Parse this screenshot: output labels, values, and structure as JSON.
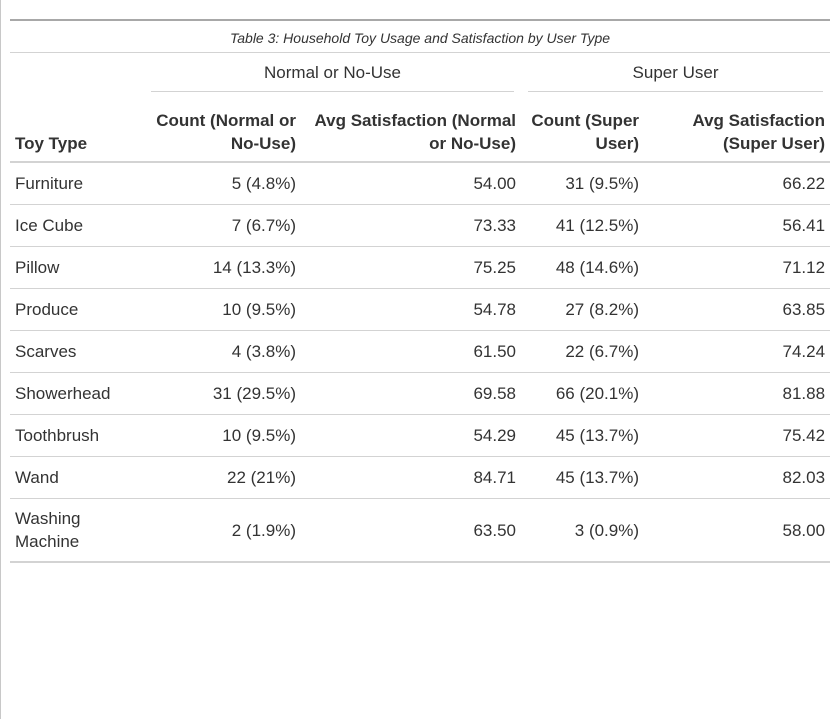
{
  "table": {
    "caption": "Table 3: Household Toy Usage and Satisfaction by User Type",
    "spanners": [
      "Normal or No-Use",
      "Super User"
    ],
    "columns": [
      "Toy Type",
      "Count (Normal or No-Use)",
      "Avg Satisfaction (Normal or No-Use)",
      "Count (Super User)",
      "Avg Satisfaction (Super User)"
    ],
    "rows": [
      [
        "Furniture",
        "5 (4.8%)",
        "54.00",
        "31 (9.5%)",
        "66.22"
      ],
      [
        "Ice Cube",
        "7 (6.7%)",
        "73.33",
        "41 (12.5%)",
        "56.41"
      ],
      [
        "Pillow",
        "14 (13.3%)",
        "75.25",
        "48 (14.6%)",
        "71.12"
      ],
      [
        "Produce",
        "10 (9.5%)",
        "54.78",
        "27 (8.2%)",
        "63.85"
      ],
      [
        "Scarves",
        "4 (3.8%)",
        "61.50",
        "22 (6.7%)",
        "74.24"
      ],
      [
        "Showerhead",
        "31 (29.5%)",
        "69.58",
        "66 (20.1%)",
        "81.88"
      ],
      [
        "Toothbrush",
        "10 (9.5%)",
        "54.29",
        "45 (13.7%)",
        "75.42"
      ],
      [
        "Wand",
        "22 (21%)",
        "84.71",
        "45 (13.7%)",
        "82.03"
      ],
      [
        "Washing Machine",
        "2 (1.9%)",
        "63.50",
        "3 (0.9%)",
        "58.00"
      ]
    ]
  }
}
